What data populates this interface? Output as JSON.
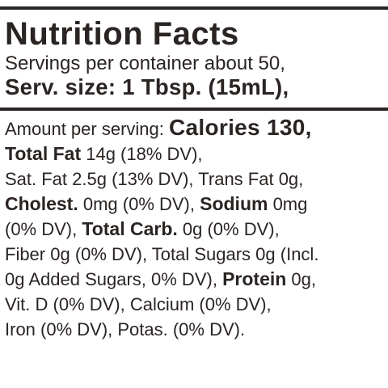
{
  "nutrition": {
    "title": "Nutrition Facts",
    "servings": "Servings per container about 50,",
    "serving_size": "Serv. size: 1 Tbsp. (15mL),",
    "amount_label": "Amount per serving:",
    "calories": "Calories 130,",
    "total_fat_label": "Total Fat",
    "total_fat_value": " 14g (18% DV),",
    "sat_trans": "Sat. Fat 2.5g (13% DV), Trans Fat 0g,",
    "cholest_label": "Cholest.",
    "cholest_value": " 0mg (0% DV), ",
    "sodium_label": "Sodium",
    "sodium_value": " 0mg",
    "sodium_dv_pre": "(0% DV), ",
    "carb_label": "Total Carb.",
    "carb_value": " 0g (0% DV),",
    "fiber_sugars": "Fiber 0g (0% DV), Total Sugars 0g (Incl.",
    "added_sugars": "0g Added Sugars, 0% DV), ",
    "protein_label": "Protein",
    "protein_value": " 0g,",
    "vit_calcium": "Vit. D (0% DV), Calcium (0% DV),",
    "iron_potas": "Iron (0% DV), Potas. (0% DV)."
  }
}
